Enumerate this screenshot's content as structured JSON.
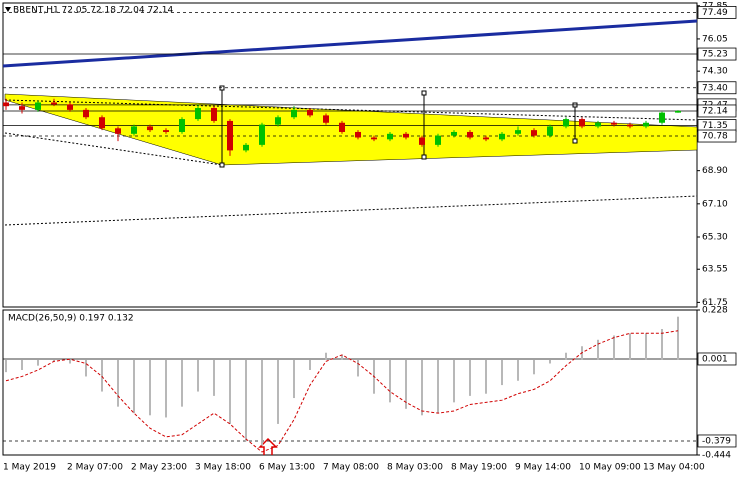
{
  "chart_data": [
    {
      "type": "candlestick",
      "title": "BRENT,H1 72.05 72.18 72.04 72.14",
      "categories": [
        "1 May 2019",
        null,
        null,
        null,
        "2 May 07:00",
        null,
        null,
        null,
        "2 May 23:00",
        null,
        null,
        null,
        "3 May 18:00",
        null,
        null,
        null,
        "6 May 13:00",
        null,
        null,
        null,
        "7 May 08:00",
        null,
        null,
        null,
        "8 May 03:00",
        null,
        null,
        null,
        "8 May 19:00",
        null,
        null,
        null,
        "9 May 14:00",
        null,
        null,
        null,
        "10 May 09:00",
        null,
        null,
        null,
        "13 May 04:00",
        null,
        null
      ],
      "open": [
        72.6,
        72.4,
        72.2,
        72.6,
        72.5,
        72.2,
        71.8,
        71.2,
        70.9,
        71.3,
        71.1,
        71.0,
        71.7,
        72.3,
        71.6,
        70.0,
        70.3,
        71.4,
        71.8,
        72.2,
        71.9,
        71.5,
        71.0,
        70.7,
        70.6,
        70.9,
        70.7,
        70.3,
        70.8,
        71.0,
        70.7,
        70.6,
        70.9,
        71.1,
        70.8,
        71.3,
        71.7,
        71.3,
        71.5,
        71.4,
        71.3,
        71.5,
        72.05
      ],
      "high": [
        72.8,
        72.6,
        72.7,
        72.8,
        72.6,
        72.3,
        71.9,
        71.3,
        71.4,
        71.4,
        71.2,
        71.8,
        72.5,
        72.4,
        71.7,
        70.4,
        71.5,
        71.9,
        72.4,
        72.3,
        72.0,
        71.6,
        71.1,
        70.8,
        71.0,
        71.0,
        70.8,
        70.9,
        71.1,
        71.1,
        70.8,
        71.0,
        71.3,
        71.2,
        71.4,
        71.8,
        71.8,
        71.6,
        71.6,
        71.5,
        71.6,
        72.1,
        72.18
      ],
      "low": [
        72.2,
        72.0,
        72.1,
        72.4,
        72.1,
        71.7,
        71.1,
        70.5,
        70.8,
        71.0,
        70.9,
        70.9,
        71.6,
        71.5,
        69.7,
        69.9,
        70.2,
        71.3,
        71.7,
        71.8,
        71.4,
        70.9,
        70.6,
        70.5,
        70.5,
        70.6,
        70.2,
        70.2,
        70.7,
        70.6,
        70.5,
        70.5,
        70.8,
        70.7,
        70.7,
        71.2,
        71.2,
        71.2,
        71.3,
        71.2,
        71.2,
        71.4,
        72.04
      ],
      "close": [
        72.4,
        72.2,
        72.6,
        72.5,
        72.2,
        71.8,
        71.2,
        70.9,
        71.3,
        71.1,
        71.0,
        71.7,
        72.3,
        71.6,
        70.0,
        70.3,
        71.4,
        71.8,
        72.2,
        71.9,
        71.5,
        71.0,
        70.7,
        70.6,
        70.9,
        70.7,
        70.3,
        70.8,
        71.0,
        70.7,
        70.6,
        70.9,
        71.1,
        70.8,
        71.3,
        71.7,
        71.3,
        71.5,
        71.4,
        71.3,
        71.5,
        72.05,
        72.14
      ],
      "up_color": "#00c000",
      "down_color": "#d00000",
      "ylim": [
        61.5,
        78.0
      ],
      "yticks": [
        77.85,
        76.05,
        {
          "value": 74.3,
          "label": "74.30"
        },
        {
          "value": 68.9,
          "label": "68.90"
        },
        {
          "value": 67.1,
          "label": "67.10"
        },
        {
          "value": 65.3,
          "label": "65.30"
        },
        63.55,
        61.75
      ],
      "levels": [
        {
          "value": 77.49,
          "dashed": true
        },
        {
          "value": 75.23,
          "dashed": false
        },
        {
          "value": 73.4,
          "label": "73.40",
          "dashed": true
        },
        {
          "value": 72.47,
          "dashed": false
        },
        {
          "value": 72.14,
          "dashed": false
        },
        {
          "value": 71.35,
          "dashed": false
        },
        {
          "value": 70.78,
          "dashed": true
        }
      ]
    },
    {
      "type": "macd",
      "title": "MACD(26,50,9) 0.197 0.132",
      "series": [
        {
          "kind": "histogram",
          "color": "#b8b8b8",
          "values": [
            -0.06,
            -0.05,
            -0.03,
            -0.01,
            -0.02,
            -0.08,
            -0.15,
            -0.22,
            -0.25,
            -0.26,
            -0.27,
            -0.22,
            -0.15,
            -0.17,
            -0.3,
            -0.38,
            -0.4,
            -0.3,
            -0.18,
            -0.05,
            0.03,
            0.02,
            -0.08,
            -0.16,
            -0.2,
            -0.23,
            -0.26,
            -0.25,
            -0.2,
            -0.17,
            -0.16,
            -0.12,
            -0.1,
            -0.07,
            -0.02,
            0.03,
            0.06,
            0.09,
            0.11,
            0.12,
            0.12,
            0.14,
            0.197
          ]
        },
        {
          "kind": "line",
          "color": "#d00000",
          "values": [
            -0.1,
            -0.08,
            -0.05,
            -0.01,
            0.0,
            -0.02,
            -0.08,
            -0.17,
            -0.25,
            -0.32,
            -0.36,
            -0.35,
            -0.3,
            -0.25,
            -0.3,
            -0.37,
            -0.43,
            -0.4,
            -0.28,
            -0.12,
            -0.01,
            0.02,
            -0.02,
            -0.08,
            -0.15,
            -0.2,
            -0.24,
            -0.25,
            -0.24,
            -0.21,
            -0.2,
            -0.19,
            -0.16,
            -0.14,
            -0.1,
            -0.03,
            0.03,
            0.07,
            0.1,
            0.12,
            0.12,
            0.12,
            0.132
          ]
        }
      ],
      "ylim": [
        -0.444,
        0.228
      ],
      "yticks": [
        0.228,
        -0.444
      ],
      "levels": [
        {
          "value": 0.001,
          "dashed": false
        },
        {
          "value": -0.379,
          "dashed": true
        }
      ]
    }
  ]
}
